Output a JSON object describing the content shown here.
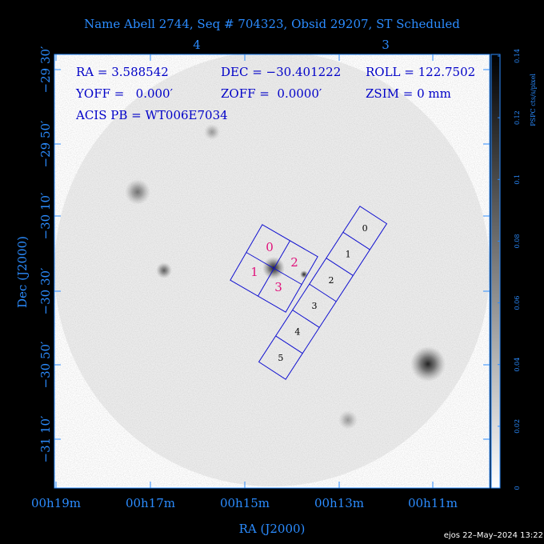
{
  "header": {
    "title": "Name Abell 2744, Seq # 704323, Obsid 29207, ST Scheduled"
  },
  "axes": {
    "x_label": "RA (J2000)",
    "y_label": "Dec (J2000)",
    "x_ticks": [
      "00h19m",
      "00h17m",
      "00h15m",
      "00h13m",
      "00h11m"
    ],
    "y_ticks": [
      "−29 30′",
      "−29 50′",
      "−30 10′",
      "−30 30′",
      "−30 50′",
      "−31 10′"
    ],
    "top_ticks": [
      "4",
      "3"
    ]
  },
  "colorbar": {
    "label": "PSPC cts/s/pixel",
    "ticks": [
      "0",
      "0.02",
      "0.04",
      "0.06",
      "0.08",
      "0.1",
      "0.12",
      "0.14"
    ]
  },
  "info": [
    "RA = 3.588542",
    "DEC = −30.401222",
    "ROLL = 122.7502",
    "YOFF =   0.000′",
    "ZOFF =  0.0000′",
    "ZSIM = 0 mm",
    "ACIS PB = WT006E7034"
  ],
  "chips_i": [
    "0",
    "1",
    "2",
    "3"
  ],
  "chips_s": [
    "0",
    "1",
    "2",
    "3",
    "4",
    "5"
  ],
  "footer": "ejos 22–May–2024 13:22"
}
